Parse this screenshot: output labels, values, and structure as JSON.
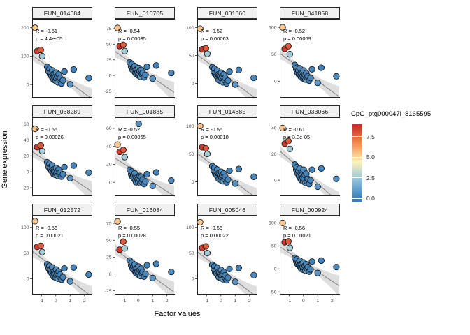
{
  "chart_data": {
    "type": "scatter",
    "x_label": "Factor values",
    "y_label": "Gene expression",
    "xlim": [
      -1.65,
      2.55
    ],
    "xticks": [
      -1,
      0,
      1,
      2
    ],
    "x": [
      -1.45,
      -1.3,
      -1.05,
      -0.95,
      -0.6,
      -0.5,
      -0.45,
      -0.4,
      -0.35,
      -0.3,
      -0.25,
      -0.2,
      -0.18,
      -0.15,
      -0.1,
      -0.05,
      0.0,
      0.02,
      0.05,
      0.1,
      0.15,
      0.2,
      0.25,
      0.3,
      0.4,
      0.5,
      0.6,
      1.0,
      1.25,
      2.3
    ],
    "cpg": [
      5.4,
      8.6,
      7.8,
      2.6,
      0.2,
      0.1,
      0.3,
      0.1,
      0.2,
      0.1,
      0.4,
      0.1,
      0.2,
      0.1,
      0.3,
      0.2,
      0.1,
      0.6,
      0.2,
      0.1,
      1.1,
      0.3,
      0.1,
      0.2,
      0.1,
      0.3,
      0.2,
      0.8,
      0.2,
      0.4
    ],
    "facets": [
      {
        "label": "FUN_014684",
        "R": "-0.61",
        "p": "4.4e-05",
        "yticks": [
          0,
          100,
          200
        ],
        "ylim": [
          -45,
          230
        ],
        "y": [
          200,
          118,
          122,
          100,
          62,
          46,
          55,
          36,
          42,
          29,
          50,
          23,
          36,
          17,
          34,
          25,
          13,
          42,
          21,
          29,
          8,
          36,
          17,
          23,
          4,
          15,
          46,
          1,
          53,
          23
        ]
      },
      {
        "label": "FUN_010705",
        "R": "-0.54",
        "p": "0.00035",
        "yticks": [
          -25,
          0,
          25,
          50,
          75
        ],
        "ylim": [
          -35,
          90
        ],
        "y": [
          76,
          47,
          49,
          39,
          21,
          14,
          18,
          9,
          12,
          7,
          15,
          4,
          9,
          2,
          9,
          5,
          0,
          12,
          3,
          7,
          -2,
          9,
          2,
          4,
          -3,
          1,
          14,
          -5,
          16,
          4
        ]
      },
      {
        "label": "FUN_001660",
        "R": "-0.52",
        "p": "0.00063",
        "yticks": [
          0,
          50,
          100
        ],
        "ylim": [
          -25,
          115
        ],
        "y": [
          98,
          61,
          63,
          53,
          29,
          21,
          26,
          16,
          19,
          13,
          23,
          10,
          16,
          6,
          15,
          11,
          4,
          19,
          9,
          13,
          2,
          16,
          6,
          10,
          0,
          5,
          21,
          -2,
          24,
          10
        ]
      },
      {
        "label": "FUN_041858",
        "R": "-0.52",
        "p": "0.00069",
        "yticks": [
          0,
          50,
          100
        ],
        "ylim": [
          -30,
          115
        ],
        "y": [
          100,
          60,
          65,
          50,
          30,
          22,
          25,
          15,
          20,
          12,
          24,
          9,
          15,
          7,
          14,
          10,
          5,
          20,
          8,
          12,
          3,
          15,
          7,
          9,
          1,
          6,
          22,
          -3,
          25,
          9
        ]
      },
      {
        "label": "FUN_038289",
        "R": "-0.55",
        "p": "0.00026",
        "yticks": [
          -20,
          0,
          20,
          40,
          60
        ],
        "ylim": [
          -30,
          68
        ],
        "y": [
          54,
          31,
          33,
          26,
          12,
          6,
          10,
          3,
          5,
          1,
          8,
          -1,
          3,
          -3,
          2,
          0,
          -4,
          5,
          -2,
          1,
          -5,
          3,
          -3,
          -1,
          -6,
          -3,
          6,
          -8,
          8,
          -1
        ]
      },
      {
        "label": "FUN_001885",
        "R": "-0.52",
        "p": "0.00065",
        "yticks": [
          0,
          20,
          40,
          60
        ],
        "ylim": [
          -15,
          72
        ],
        "y": [
          42,
          34,
          36,
          28,
          14,
          9,
          12,
          6,
          8,
          4,
          10,
          2,
          6,
          0,
          5,
          3,
          1,
          65,
          4,
          7,
          -1,
          6,
          0,
          3,
          -2,
          1,
          9,
          -4,
          11,
          2
        ]
      },
      {
        "label": "FUN_014685",
        "R": "-0.56",
        "p": "0.00018",
        "yticks": [
          0,
          50,
          100
        ],
        "ylim": [
          -25,
          115
        ],
        "y": [
          100,
          62,
          60,
          50,
          28,
          20,
          25,
          15,
          18,
          12,
          22,
          9,
          15,
          5,
          14,
          10,
          3,
          18,
          8,
          12,
          1,
          15,
          5,
          9,
          -1,
          4,
          20,
          -3,
          23,
          9
        ]
      },
      {
        "label": "FUN_033066",
        "R": "-0.61",
        "p": "3.3e-05",
        "yticks": [
          0,
          20,
          40
        ],
        "ylim": [
          -12,
          48
        ],
        "y": [
          40,
          28,
          30,
          24,
          12,
          8,
          10,
          5,
          7,
          3,
          9,
          1,
          5,
          0,
          4,
          2,
          -1,
          8,
          1,
          4,
          -2,
          5,
          -1,
          1,
          -3,
          0,
          8,
          -5,
          9,
          1
        ]
      },
      {
        "label": "FUN_012572",
        "R": "-0.56",
        "p": "0.00021",
        "yticks": [
          0,
          50,
          100
        ],
        "ylim": [
          -30,
          122
        ],
        "y": [
          112,
          62,
          64,
          52,
          28,
          20,
          25,
          14,
          18,
          11,
          22,
          8,
          14,
          4,
          13,
          9,
          2,
          18,
          7,
          11,
          0,
          14,
          4,
          8,
          -2,
          3,
          20,
          -5,
          22,
          8
        ]
      },
      {
        "label": "FUN_016084",
        "R": "-0.55",
        "p": "0.00028",
        "yticks": [
          -25,
          0,
          25,
          50,
          75
        ],
        "ylim": [
          -30,
          86
        ],
        "y": [
          78,
          36,
          48,
          38,
          20,
          13,
          17,
          8,
          11,
          6,
          14,
          3,
          8,
          1,
          8,
          4,
          -1,
          11,
          2,
          6,
          -3,
          8,
          1,
          3,
          -4,
          0,
          13,
          -6,
          15,
          3
        ]
      },
      {
        "label": "FUN_005046",
        "R": "-0.56",
        "p": "0.00022",
        "yticks": [
          0,
          50,
          100
        ],
        "ylim": [
          -30,
          122
        ],
        "y": [
          110,
          60,
          63,
          50,
          27,
          19,
          24,
          13,
          17,
          10,
          21,
          7,
          13,
          3,
          12,
          8,
          1,
          17,
          6,
          10,
          -1,
          13,
          3,
          7,
          -3,
          2,
          19,
          -6,
          21,
          7
        ]
      },
      {
        "label": "FUN_000924",
        "R": "-0.56",
        "p": "0.00021",
        "yticks": [
          -50,
          0,
          50,
          100
        ],
        "ylim": [
          -55,
          115
        ],
        "y": [
          100,
          58,
          60,
          46,
          24,
          16,
          21,
          10,
          14,
          7,
          18,
          4,
          10,
          0,
          9,
          5,
          -2,
          14,
          3,
          7,
          -4,
          10,
          0,
          4,
          -6,
          -1,
          16,
          -9,
          18,
          4
        ]
      }
    ],
    "legend": {
      "title": "CpG_ptg000047l_8165595",
      "ticks": [
        7.5,
        5.0,
        2.5,
        0.0
      ],
      "range": [
        -0.5,
        9.0
      ],
      "stops": [
        [
          0,
          "#3B7DB8"
        ],
        [
          2.2,
          "#8FC2DC"
        ],
        [
          4.4,
          "#FDF3BB"
        ],
        [
          6.6,
          "#F68E52"
        ],
        [
          8.8,
          "#CB2F27"
        ]
      ]
    },
    "style": {
      "point_stroke": "#1b1b1b",
      "panel_border": "#222222",
      "fit_line": "#8a8a8a",
      "ribbon": "rgba(0,0,0,0.13)",
      "tick_text": "#4a4a4a",
      "annotation_text": "#000000"
    }
  }
}
